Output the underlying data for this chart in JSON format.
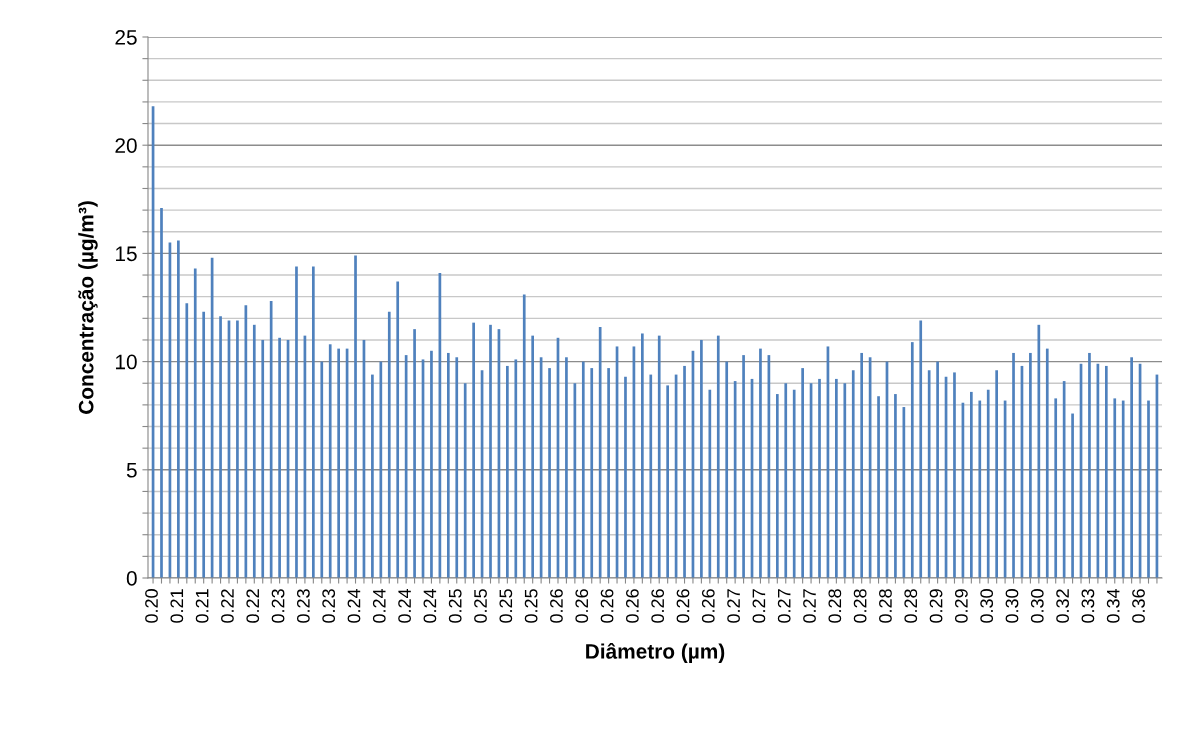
{
  "chart_data": {
    "type": "bar",
    "xlabel": "Diâmetro (µm)",
    "ylabel": "Concentração (µg/m³)",
    "categories": [
      "0.20",
      null,
      null,
      "0.21",
      null,
      null,
      "0.21",
      null,
      null,
      "0.22",
      null,
      null,
      "0.22",
      null,
      null,
      "0.23",
      null,
      null,
      "0.23",
      null,
      null,
      "0.23",
      null,
      null,
      "0.24",
      null,
      null,
      "0.24",
      null,
      null,
      "0.24",
      null,
      null,
      "0.24",
      null,
      null,
      "0.25",
      null,
      null,
      "0.25",
      null,
      null,
      "0.25",
      null,
      null,
      "0.25",
      null,
      null,
      "0.26",
      null,
      null,
      "0.26",
      null,
      null,
      "0.26",
      null,
      null,
      "0.26",
      null,
      null,
      "0.26",
      null,
      null,
      "0.26",
      null,
      null,
      "0.26",
      null,
      null,
      "0.27",
      null,
      null,
      "0.27",
      null,
      null,
      "0.27",
      null,
      null,
      "0.27",
      null,
      null,
      "0.28",
      null,
      null,
      "0.28",
      null,
      null,
      "0.28",
      null,
      null,
      "0.28",
      null,
      null,
      "0.29",
      null,
      null,
      "0.29",
      null,
      null,
      "0.30",
      null,
      null,
      "0.30",
      null,
      null,
      "0.30",
      null,
      null,
      "0.32",
      null,
      null,
      "0.33",
      null,
      null,
      "0.34",
      null,
      null,
      "0.36",
      null,
      null
    ],
    "values": [
      21.8,
      17.1,
      15.5,
      15.6,
      12.7,
      14.3,
      12.3,
      14.8,
      12.1,
      11.9,
      11.9,
      12.6,
      11.7,
      11.0,
      12.8,
      11.1,
      11.0,
      14.4,
      11.2,
      14.4,
      10.0,
      10.8,
      10.6,
      10.6,
      14.9,
      11.0,
      9.4,
      10.0,
      12.3,
      13.7,
      10.3,
      11.5,
      10.1,
      10.5,
      14.1,
      10.4,
      10.2,
      9.0,
      11.8,
      9.6,
      11.7,
      11.5,
      9.8,
      10.1,
      13.1,
      11.2,
      10.2,
      9.7,
      11.1,
      10.2,
      9.0,
      10.0,
      9.7,
      11.6,
      9.7,
      10.7,
      9.3,
      10.7,
      11.3,
      9.4,
      11.2,
      8.9,
      9.4,
      9.8,
      10.5,
      11.0,
      8.7,
      11.2,
      10.0,
      9.1,
      10.3,
      9.2,
      10.6,
      10.3,
      8.5,
      9.0,
      8.7,
      9.7,
      9.0,
      9.2,
      10.7,
      9.2,
      9.0,
      9.6,
      10.4,
      10.2,
      8.4,
      10.0,
      8.5,
      7.9,
      10.9,
      11.9,
      9.6,
      10.0,
      9.3,
      9.5,
      8.1,
      8.6,
      8.2,
      8.7,
      9.6,
      8.2,
      10.4,
      9.8,
      10.4,
      11.7,
      10.6,
      8.3,
      9.1,
      7.6,
      9.9,
      10.4,
      9.9,
      9.8,
      8.3,
      8.2,
      10.2,
      9.9,
      8.2,
      9.4
    ],
    "color": "#4f81bd",
    "ylim": [
      0,
      25
    ],
    "yticks": [
      0,
      {
        "value": 1,
        "label": null
      },
      {
        "value": 2,
        "label": null
      },
      {
        "value": 3,
        "label": null
      },
      {
        "value": 4,
        "label": null
      },
      5,
      {
        "value": 6,
        "label": null
      },
      {
        "value": 7,
        "label": null
      },
      {
        "value": 8,
        "label": null
      },
      {
        "value": 9,
        "label": null
      },
      10,
      {
        "value": 11,
        "label": null
      },
      {
        "value": 12,
        "label": null
      },
      {
        "value": 13,
        "label": null
      },
      {
        "value": 14,
        "label": null
      },
      15,
      {
        "value": 16,
        "label": null
      },
      {
        "value": 17,
        "label": null
      },
      {
        "value": 18,
        "label": null
      },
      {
        "value": 19,
        "label": null
      },
      20,
      {
        "value": 21,
        "label": null
      },
      {
        "value": 22,
        "label": null
      },
      {
        "value": 23,
        "label": null
      },
      {
        "value": 24,
        "label": null
      },
      25
    ],
    "grid": "y"
  }
}
